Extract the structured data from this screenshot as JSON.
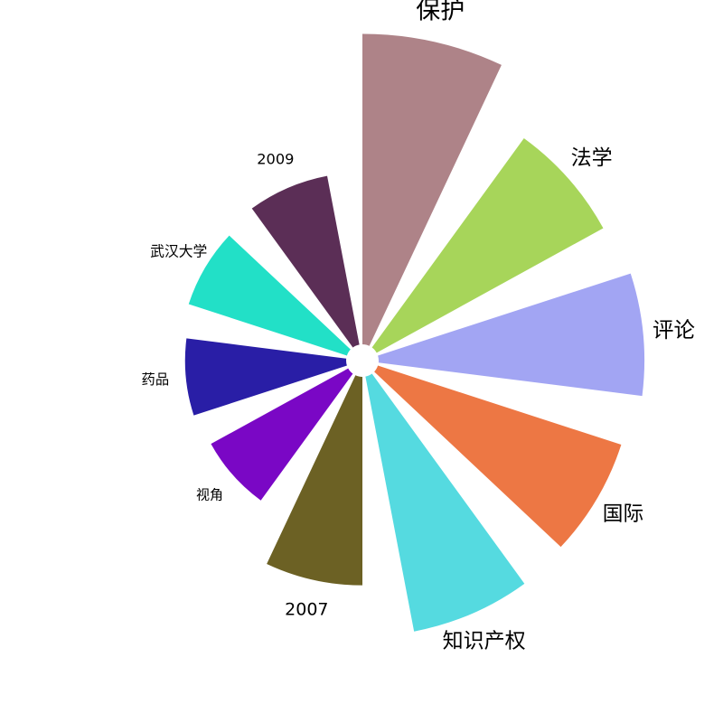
{
  "chart_data": {
    "type": "bar",
    "projection": "polar",
    "title": "",
    "categories": [
      "保护",
      "法学",
      "评论",
      "国际",
      "知识产权",
      "2007",
      "视角",
      "药品",
      "武汉大学",
      "2009"
    ],
    "values": [
      347,
      289,
      297,
      286,
      290,
      233,
      175,
      180,
      186,
      192
    ],
    "colors": [
      "#ae8388",
      "#a7d55a",
      "#a2a5f3",
      "#ed7744",
      "#55dae0",
      "#6c6124",
      "#7a07c5",
      "#291ea6",
      "#22e0c7",
      "#5b2e56"
    ],
    "grid": false,
    "legend": "none"
  }
}
